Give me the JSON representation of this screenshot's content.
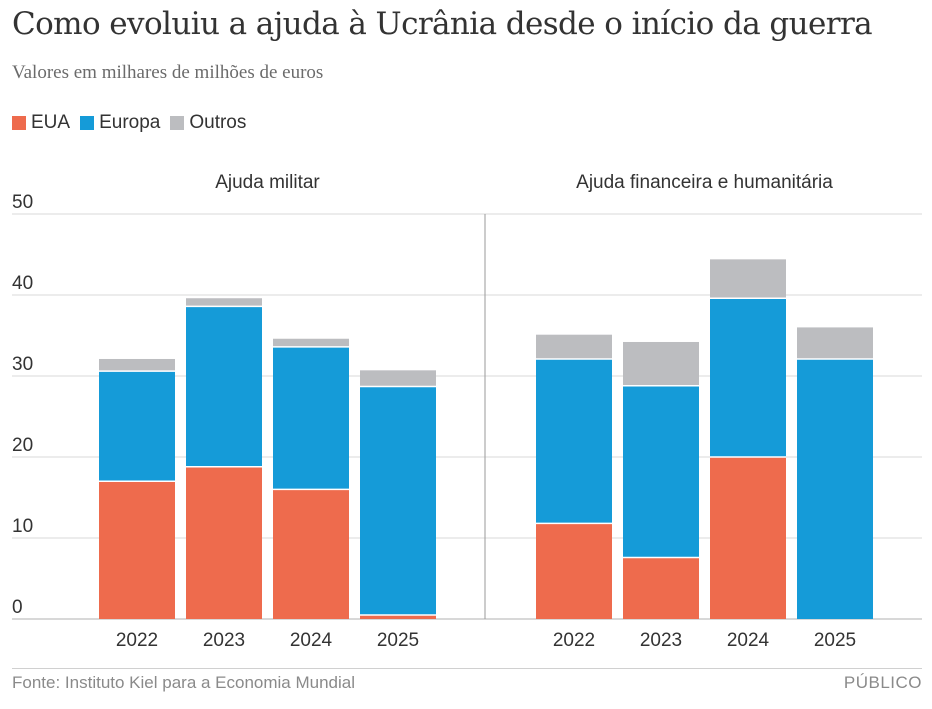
{
  "header": {
    "title": "Como evoluiu a ajuda à Ucrânia desde o início da guerra",
    "subtitle": "Valores em milhares de milhões de euros"
  },
  "footer": {
    "source": "Fonte: Instituto Kiel para a Economia Mundial",
    "brand": "PÚBLICO"
  },
  "colors": {
    "EUA": "#ee6b4d",
    "Europa": "#159bd8",
    "Outros": "#bcbdc0",
    "grid": "#d9d9d9",
    "divider": "#9a9a9a",
    "text": "#333333"
  },
  "chart_data": {
    "type": "bar",
    "stacked": true,
    "legend": [
      "EUA",
      "Europa",
      "Outros"
    ],
    "legend_position": "top-left",
    "ylim": [
      0,
      50
    ],
    "yticks": [
      0,
      10,
      20,
      30,
      40,
      50
    ],
    "grid": true,
    "panels": [
      {
        "title": "Ajuda militar",
        "categories": [
          "2022",
          "2023",
          "2024",
          "2025"
        ],
        "series": [
          {
            "name": "EUA",
            "values": [
              17.0,
              18.8,
              16.0,
              0.5
            ]
          },
          {
            "name": "Europa",
            "values": [
              13.6,
              19.8,
              17.6,
              28.2
            ]
          },
          {
            "name": "Outros",
            "values": [
              1.5,
              1.0,
              1.0,
              2.0
            ]
          }
        ]
      },
      {
        "title": "Ajuda financeira e humanitária",
        "categories": [
          "2022",
          "2023",
          "2024",
          "2025"
        ],
        "series": [
          {
            "name": "EUA",
            "values": [
              11.8,
              7.6,
              20.0,
              0.0
            ]
          },
          {
            "name": "Europa",
            "values": [
              20.3,
              21.2,
              19.6,
              32.1
            ]
          },
          {
            "name": "Outros",
            "values": [
              3.0,
              5.4,
              4.8,
              3.9
            ]
          }
        ]
      }
    ]
  }
}
